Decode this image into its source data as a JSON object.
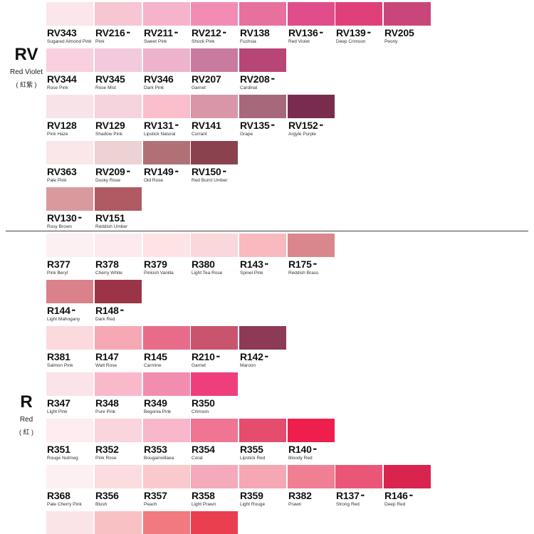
{
  "groups": [
    {
      "code": "RV",
      "name": "Red Violet",
      "name_cn": "( 紅紫 )"
    },
    {
      "code": "R",
      "name": "Red",
      "name_cn": "( 紅 )"
    }
  ],
  "swatches": [
    {
      "code": "RV343",
      "name": "Sugared Almond Pink",
      "color": "#fbe6ec",
      "marks": ""
    },
    {
      "code": "RV216",
      "name": "Pink",
      "color": "#f7c6d3",
      "marks": "••"
    },
    {
      "code": "RV211",
      "name": "Sweet Pink",
      "color": "#f5b4cb",
      "marks": "••"
    },
    {
      "code": "RV212",
      "name": "Shock Pink",
      "color": "#f28cb5",
      "marks": "••"
    },
    {
      "code": "RV138",
      "name": "Fuchsia",
      "color": "#e8709f",
      "marks": ""
    },
    {
      "code": "RV136",
      "name": "Red Violet",
      "color": "#e04d8a",
      "marks": "••"
    },
    {
      "code": "RV139",
      "name": "Deep Crimson",
      "color": "#e0407a",
      "marks": "••"
    },
    {
      "code": "RV205",
      "name": "Peony",
      "color": "#c9467a",
      "marks": ""
    },
    {
      "code": "RV344",
      "name": "Rose Pink",
      "color": "#f8d0df",
      "marks": ""
    },
    {
      "code": "RV345",
      "name": "Rose Mist",
      "color": "#f3cadd",
      "marks": ""
    },
    {
      "code": "RV346",
      "name": "Dark Pink",
      "color": "#eeb3cc",
      "marks": ""
    },
    {
      "code": "RV207",
      "name": "Garnet",
      "color": "#c97a9f",
      "marks": ""
    },
    {
      "code": "RV208",
      "name": "Cardinal",
      "color": "#b74676",
      "marks": "••"
    },
    {
      "code": "RV128",
      "name": "Pink Haze",
      "color": "#f7e3e8",
      "marks": ""
    },
    {
      "code": "RV129",
      "name": "Shadow Pink",
      "color": "#f6d4dd",
      "marks": ""
    },
    {
      "code": "RV131",
      "name": "Lipstick Natural",
      "color": "#fbbfcb",
      "marks": "••"
    },
    {
      "code": "RV141",
      "name": "Currant",
      "color": "#d996a9",
      "marks": ""
    },
    {
      "code": "RV135",
      "name": "Grape",
      "color": "#a7687c",
      "marks": "••"
    },
    {
      "code": "RV152",
      "name": "Argyle Purple",
      "color": "#7a2c4f",
      "marks": "••"
    },
    {
      "code": "RV363",
      "name": "Pale Pink",
      "color": "#f9e7ea",
      "marks": ""
    },
    {
      "code": "RV209",
      "name": "Dusky Rose",
      "color": "#ecd2d3",
      "marks": "••"
    },
    {
      "code": "RV149",
      "name": "Old Rose",
      "color": "#b07176",
      "marks": "••"
    },
    {
      "code": "RV150",
      "name": "Red Burnt Umber",
      "color": "#8a434e",
      "marks": "••"
    },
    {
      "code": "RV130",
      "name": "Rosy Brown",
      "color": "#d99a9e",
      "marks": "••"
    },
    {
      "code": "RV151",
      "name": "Reddish Umber",
      "color": "#b05a64",
      "marks": ""
    },
    {
      "code": "R377",
      "name": "Pink Beryl",
      "color": "#fdf0f2",
      "marks": ""
    },
    {
      "code": "R378",
      "name": "Cherry White",
      "color": "#fdeaee",
      "marks": ""
    },
    {
      "code": "R379",
      "name": "Pinkish Vanilla",
      "color": "#fde3e4",
      "marks": ""
    },
    {
      "code": "R380",
      "name": "Light Tea Rose",
      "color": "#fad7da",
      "marks": ""
    },
    {
      "code": "R143",
      "name": "Spinel Pink",
      "color": "#f8b9bf",
      "marks": "••"
    },
    {
      "code": "R175",
      "name": "Reddish Brass",
      "color": "#d9878c",
      "marks": "••"
    },
    {
      "code": "R144",
      "name": "Light Mahogany",
      "color": "#d9828c",
      "marks": "••"
    },
    {
      "code": "R148",
      "name": "Dark Red",
      "color": "#9a3446",
      "marks": "••"
    },
    {
      "code": "R381",
      "name": "Salmon Pink",
      "color": "#fbd9dd",
      "marks": ""
    },
    {
      "code": "R147",
      "name": "Watt Rose",
      "color": "#f7a8b5",
      "marks": ""
    },
    {
      "code": "R145",
      "name": "Carmine",
      "color": "#e86c8a",
      "marks": ""
    },
    {
      "code": "R210",
      "name": "Garnet",
      "color": "#c9546e",
      "marks": "••"
    },
    {
      "code": "R142",
      "name": "Maroon",
      "color": "#8d3a57",
      "marks": "••"
    },
    {
      "code": "R347",
      "name": "Light Pink",
      "color": "#fbe3ea",
      "marks": ""
    },
    {
      "code": "R348",
      "name": "Pure Pink",
      "color": "#f9b9cb",
      "marks": ""
    },
    {
      "code": "R349",
      "name": "Begonia Pink",
      "color": "#f38db0",
      "marks": ""
    },
    {
      "code": "R350",
      "name": "Crimson",
      "color": "#ee3f7c",
      "marks": ""
    },
    {
      "code": "R351",
      "name": "Rouge Nutmeg",
      "color": "#fdedf0",
      "marks": ""
    },
    {
      "code": "R352",
      "name": "Pink Rose",
      "color": "#fad5de",
      "marks": ""
    },
    {
      "code": "R353",
      "name": "Bougainvillaea",
      "color": "#f8b7ca",
      "marks": ""
    },
    {
      "code": "R354",
      "name": "Coral",
      "color": "#ef7593",
      "marks": ""
    },
    {
      "code": "R355",
      "name": "Lipstick Red",
      "color": "#e54c6d",
      "marks": ""
    },
    {
      "code": "R140",
      "name": "Bloody Red",
      "color": "#ee1f4d",
      "marks": "••"
    },
    {
      "code": "R368",
      "name": "Pale Cherry Pink",
      "color": "#fdf0f2",
      "marks": ""
    },
    {
      "code": "R356",
      "name": "Blush",
      "color": "#fbdcdf",
      "marks": ""
    },
    {
      "code": "R357",
      "name": "Peach",
      "color": "#f9c9cd",
      "marks": ""
    },
    {
      "code": "R358",
      "name": "Light Prawn",
      "color": "#f4aabb",
      "marks": ""
    },
    {
      "code": "R359",
      "name": "Light Rouge",
      "color": "#f5a7b4",
      "marks": ""
    },
    {
      "code": "R382",
      "name": "Prawn",
      "color": "#f17f93",
      "marks": ""
    },
    {
      "code": "R137",
      "name": "Strong Red",
      "color": "#ea5677",
      "marks": "••"
    },
    {
      "code": "R146",
      "name": "Deep Red",
      "color": "#d8244f",
      "marks": "••"
    }
  ],
  "partial_row": [
    {
      "color": "#fbe4e8"
    },
    {
      "color": "#f8c2c4"
    },
    {
      "color": "#f07a80"
    },
    {
      "color": "#ea3f4f"
    }
  ]
}
